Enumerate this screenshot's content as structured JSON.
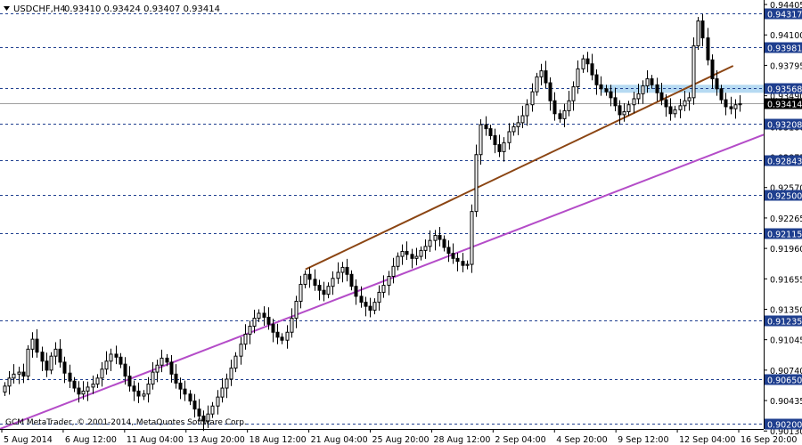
{
  "header": {
    "symbol": "USDCHF,H4",
    "ohlc": "0.93410 0.93424 0.93407 0.93414"
  },
  "footer": {
    "copyright": "GCM MetaTrader, © 2001-2014, MetaQuotes Software Corp."
  },
  "colors": {
    "background": "#ffffff",
    "candle": "#000000",
    "level_line": "#1f3f8f",
    "level_label_bg": "#1f3f8f",
    "level_label_text": "#ffffff",
    "trend_brown": "#8b4513",
    "trend_purple": "#b44cc8",
    "highlight_zone": "#a9d3f0",
    "bid_line": "#9e9e9e"
  },
  "chart_data": {
    "type": "candlestick",
    "ylim": [
      0.9015,
      0.9445
    ],
    "price_ticks": [
      "0.94405",
      "0.94100",
      "0.93795",
      "0.93490",
      "0.93180",
      "0.92875",
      "0.92570",
      "0.92265",
      "0.91960",
      "0.91655",
      "0.91350",
      "0.91045",
      "0.90740",
      "0.90435",
      "0.90130"
    ],
    "level_labels": [
      "0.94317",
      "0.93981",
      "0.93568",
      "0.93208",
      "0.92843",
      "0.92500",
      "0.92115",
      "0.91235",
      "0.90650",
      "0.90200"
    ],
    "current_price": "0.93414",
    "time_labels": [
      "5 Aug 2014",
      "6 Aug 12:00",
      "11 Aug 04:00",
      "13 Aug 20:00",
      "18 Aug 12:00",
      "21 Aug 04:00",
      "25 Aug 20:00",
      "28 Aug 12:00",
      "2 Sep 04:00",
      "4 Sep 20:00",
      "9 Sep 12:00",
      "12 Sep 04:00",
      "16 Sep 20:00"
    ],
    "highlight_zone": [
      0.9352,
      0.936
    ],
    "trendlines": [
      {
        "color": "brown",
        "from": [
          0.4,
          0.9175
        ],
        "to": [
          0.96,
          0.9379
        ]
      },
      {
        "color": "purple",
        "from": [
          0.0,
          0.9015
        ],
        "to": [
          1.0,
          0.931
        ]
      }
    ],
    "closes": [
      0.9058,
      0.9066,
      0.907,
      0.9072,
      0.9068,
      0.9095,
      0.9105,
      0.9092,
      0.9083,
      0.9074,
      0.9088,
      0.9095,
      0.9082,
      0.9071,
      0.9063,
      0.9056,
      0.905,
      0.9053,
      0.9057,
      0.906,
      0.9066,
      0.9075,
      0.9083,
      0.909,
      0.9087,
      0.908,
      0.9068,
      0.9058,
      0.9053,
      0.9048,
      0.905,
      0.906,
      0.9072,
      0.9079,
      0.9086,
      0.9082,
      0.907,
      0.9061,
      0.9055,
      0.905,
      0.9043,
      0.9035,
      0.9028,
      0.9023,
      0.903,
      0.9038,
      0.9047,
      0.9056,
      0.9065,
      0.9076,
      0.9088,
      0.91,
      0.911,
      0.9118,
      0.9126,
      0.9131,
      0.9127,
      0.912,
      0.9112,
      0.9107,
      0.9104,
      0.9112,
      0.9126,
      0.9143,
      0.916,
      0.917,
      0.9165,
      0.9159,
      0.9154,
      0.915,
      0.9158,
      0.9166,
      0.9172,
      0.9177,
      0.917,
      0.9158,
      0.9148,
      0.9142,
      0.9138,
      0.9134,
      0.9142,
      0.9152,
      0.9159,
      0.9168,
      0.9178,
      0.9188,
      0.9193,
      0.919,
      0.9186,
      0.9188,
      0.9194,
      0.9198,
      0.9204,
      0.9209,
      0.9205,
      0.9197,
      0.9191,
      0.9186,
      0.9183,
      0.9179,
      0.918,
      0.9233,
      0.929,
      0.932,
      0.9316,
      0.9309,
      0.93,
      0.9293,
      0.9302,
      0.9313,
      0.9318,
      0.9322,
      0.9329,
      0.934,
      0.9353,
      0.9368,
      0.9374,
      0.9362,
      0.9344,
      0.9331,
      0.9326,
      0.9334,
      0.9344,
      0.9358,
      0.9376,
      0.9386,
      0.9381,
      0.937,
      0.936,
      0.9356,
      0.9353,
      0.9347,
      0.9339,
      0.933,
      0.9333,
      0.934,
      0.9346,
      0.9351,
      0.9359,
      0.9366,
      0.936,
      0.9352,
      0.9345,
      0.9338,
      0.9331,
      0.9335,
      0.9339,
      0.9344,
      0.9347,
      0.9399,
      0.9424,
      0.9407,
      0.9385,
      0.9366,
      0.9356,
      0.9345,
      0.9338,
      0.9336,
      0.934,
      0.9341
    ]
  }
}
